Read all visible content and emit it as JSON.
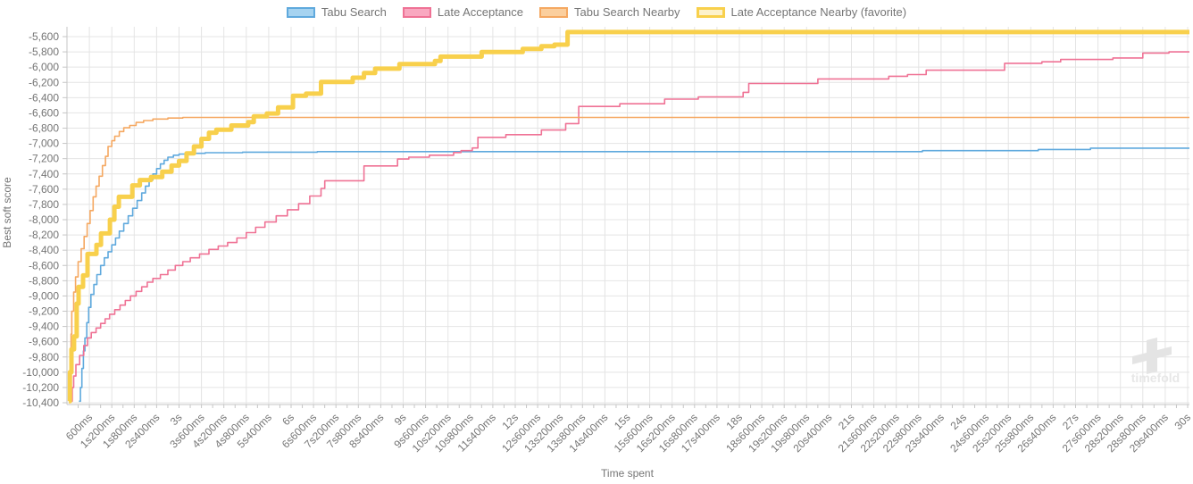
{
  "page": {
    "background": "#ffffff",
    "grid_color": "#e4e4e4",
    "axis_color": "#c6c6c6",
    "tick_label_color": "#757575"
  },
  "watermark": {
    "text": "timefold",
    "text_color": "#e7e7e7",
    "logo_color": "#e4e4e4"
  },
  "chart_data": {
    "type": "line",
    "step": true,
    "title": "",
    "xlabel": "Time spent",
    "ylabel": "Best soft score",
    "xlim_seconds": [
      0,
      30
    ],
    "ylim": [
      -10400,
      -5600
    ],
    "grid": true,
    "legend_position": "top-center",
    "x_tick_interval_seconds": 0.6,
    "x_tick_labels": [
      "600ms",
      "1s200ms",
      "1s800ms",
      "2s400ms",
      "3s",
      "3s600ms",
      "4s200ms",
      "4s800ms",
      "5s400ms",
      "6s",
      "6s600ms",
      "7s200ms",
      "7s800ms",
      "8s400ms",
      "9s",
      "9s600ms",
      "10s200ms",
      "10s800ms",
      "11s400ms",
      "12s",
      "12s600ms",
      "13s200ms",
      "13s800ms",
      "14s400ms",
      "15s",
      "15s600ms",
      "16s200ms",
      "16s800ms",
      "17s400ms",
      "18s",
      "18s600ms",
      "19s200ms",
      "19s800ms",
      "20s400ms",
      "21s",
      "21s600ms",
      "22s200ms",
      "22s800ms",
      "23s400ms",
      "24s",
      "24s600ms",
      "25s200ms",
      "25s800ms",
      "26s400ms",
      "27s",
      "27s600ms",
      "28s200ms",
      "28s800ms",
      "29s400ms",
      "30s"
    ],
    "y_tick_labels": [
      "-5,600",
      "-5,800",
      "-6,000",
      "-6,200",
      "-6,400",
      "-6,600",
      "-6,800",
      "-7,000",
      "-7,200",
      "-7,400",
      "-7,600",
      "-7,800",
      "-8,000",
      "-8,200",
      "-8,400",
      "-8,600",
      "-8,800",
      "-9,000",
      "-9,200",
      "-9,400",
      "-9,600",
      "-9,800",
      "-10,000",
      "-10,200",
      "-10,400"
    ],
    "series": [
      {
        "name": "Tabu Search",
        "color": "#5fa9dd",
        "legend_fill": "#a6d3f0",
        "line_width": 1.6,
        "final_score": -7062,
        "points": [
          [
            0.32,
            -10380
          ],
          [
            0.36,
            -10200
          ],
          [
            0.4,
            -9950
          ],
          [
            0.44,
            -9720
          ],
          [
            0.48,
            -9550
          ],
          [
            0.53,
            -9350
          ],
          [
            0.58,
            -9150
          ],
          [
            0.64,
            -8980
          ],
          [
            0.72,
            -8850
          ],
          [
            0.8,
            -8720
          ],
          [
            0.9,
            -8600
          ],
          [
            1.0,
            -8500
          ],
          [
            1.1,
            -8420
          ],
          [
            1.2,
            -8330
          ],
          [
            1.3,
            -8240
          ],
          [
            1.4,
            -8150
          ],
          [
            1.52,
            -8050
          ],
          [
            1.64,
            -7950
          ],
          [
            1.76,
            -7850
          ],
          [
            1.88,
            -7750
          ],
          [
            2.0,
            -7650
          ],
          [
            2.1,
            -7560
          ],
          [
            2.2,
            -7480
          ],
          [
            2.3,
            -7400
          ],
          [
            2.4,
            -7330
          ],
          [
            2.5,
            -7270
          ],
          [
            2.6,
            -7220
          ],
          [
            2.7,
            -7180
          ],
          [
            2.85,
            -7155
          ],
          [
            3.0,
            -7140
          ],
          [
            3.3,
            -7130
          ],
          [
            3.7,
            -7122
          ],
          [
            4.7,
            -7115
          ],
          [
            6.7,
            -7108
          ],
          [
            22.9,
            -7095
          ],
          [
            26.0,
            -7080
          ],
          [
            27.4,
            -7062
          ]
        ]
      },
      {
        "name": "Late Acceptance",
        "color": "#ef7295",
        "legend_fill": "#f9a8c0",
        "line_width": 1.6,
        "final_score": -5800,
        "points": [
          [
            0.1,
            -10380
          ],
          [
            0.14,
            -10200
          ],
          [
            0.18,
            -10050
          ],
          [
            0.24,
            -9900
          ],
          [
            0.34,
            -9780
          ],
          [
            0.45,
            -9650
          ],
          [
            0.55,
            -9550
          ],
          [
            0.65,
            -9480
          ],
          [
            0.78,
            -9420
          ],
          [
            0.9,
            -9360
          ],
          [
            1.02,
            -9300
          ],
          [
            1.14,
            -9240
          ],
          [
            1.28,
            -9180
          ],
          [
            1.42,
            -9120
          ],
          [
            1.56,
            -9060
          ],
          [
            1.7,
            -9000
          ],
          [
            1.85,
            -8940
          ],
          [
            2.0,
            -8880
          ],
          [
            2.15,
            -8820
          ],
          [
            2.3,
            -8770
          ],
          [
            2.5,
            -8720
          ],
          [
            2.7,
            -8660
          ],
          [
            2.9,
            -8600
          ],
          [
            3.1,
            -8550
          ],
          [
            3.3,
            -8500
          ],
          [
            3.55,
            -8450
          ],
          [
            3.8,
            -8390
          ],
          [
            4.05,
            -8345
          ],
          [
            4.3,
            -8300
          ],
          [
            4.55,
            -8240
          ],
          [
            4.8,
            -8170
          ],
          [
            5.05,
            -8100
          ],
          [
            5.3,
            -8030
          ],
          [
            5.6,
            -7950
          ],
          [
            5.9,
            -7870
          ],
          [
            6.2,
            -7790
          ],
          [
            6.5,
            -7690
          ],
          [
            6.8,
            -7590
          ],
          [
            6.9,
            -7490
          ],
          [
            7.95,
            -7295
          ],
          [
            8.85,
            -7205
          ],
          [
            9.15,
            -7180
          ],
          [
            9.7,
            -7155
          ],
          [
            10.35,
            -7120
          ],
          [
            10.55,
            -7095
          ],
          [
            10.85,
            -7060
          ],
          [
            11.0,
            -6920
          ],
          [
            11.75,
            -6885
          ],
          [
            12.7,
            -6825
          ],
          [
            13.35,
            -6740
          ],
          [
            13.7,
            -6515
          ],
          [
            14.8,
            -6480
          ],
          [
            16.0,
            -6420
          ],
          [
            16.9,
            -6390
          ],
          [
            18.1,
            -6330
          ],
          [
            18.25,
            -6215
          ],
          [
            20.1,
            -6155
          ],
          [
            22.0,
            -6120
          ],
          [
            22.5,
            -6098
          ],
          [
            23.0,
            -6040
          ],
          [
            25.1,
            -5950
          ],
          [
            26.1,
            -5930
          ],
          [
            26.6,
            -5900
          ],
          [
            28.0,
            -5880
          ],
          [
            28.8,
            -5815
          ],
          [
            29.5,
            -5800
          ]
        ]
      },
      {
        "name": "Tabu Search Nearby",
        "color": "#f5a861",
        "legend_fill": "#fbcf9e",
        "line_width": 1.6,
        "final_score": -6660,
        "points": [
          [
            0.07,
            -10380
          ],
          [
            0.09,
            -9950
          ],
          [
            0.11,
            -9500
          ],
          [
            0.13,
            -9200
          ],
          [
            0.18,
            -8950
          ],
          [
            0.23,
            -8750
          ],
          [
            0.3,
            -8550
          ],
          [
            0.38,
            -8380
          ],
          [
            0.46,
            -8220
          ],
          [
            0.54,
            -8050
          ],
          [
            0.62,
            -7880
          ],
          [
            0.7,
            -7700
          ],
          [
            0.78,
            -7560
          ],
          [
            0.86,
            -7430
          ],
          [
            0.95,
            -7290
          ],
          [
            1.03,
            -7170
          ],
          [
            1.1,
            -7040
          ],
          [
            1.2,
            -6965
          ],
          [
            1.28,
            -6905
          ],
          [
            1.4,
            -6845
          ],
          [
            1.52,
            -6795
          ],
          [
            1.68,
            -6765
          ],
          [
            1.85,
            -6725
          ],
          [
            2.05,
            -6700
          ],
          [
            2.3,
            -6680
          ],
          [
            2.7,
            -6668
          ],
          [
            3.1,
            -6660
          ]
        ]
      },
      {
        "name": "Late Acceptance Nearby (favorite)",
        "color": "#f8d04c",
        "legend_fill": "#fdf2cc",
        "line_width": 5,
        "final_score": -5540,
        "points": [
          [
            0.05,
            -10380
          ],
          [
            0.08,
            -10000
          ],
          [
            0.12,
            -9700
          ],
          [
            0.19,
            -9530
          ],
          [
            0.26,
            -9100
          ],
          [
            0.31,
            -8880
          ],
          [
            0.43,
            -8730
          ],
          [
            0.55,
            -8450
          ],
          [
            0.79,
            -8330
          ],
          [
            0.91,
            -8180
          ],
          [
            1.15,
            -8000
          ],
          [
            1.27,
            -7830
          ],
          [
            1.39,
            -7700
          ],
          [
            1.75,
            -7550
          ],
          [
            1.95,
            -7480
          ],
          [
            2.25,
            -7440
          ],
          [
            2.55,
            -7370
          ],
          [
            2.8,
            -7290
          ],
          [
            3.0,
            -7230
          ],
          [
            3.2,
            -7130
          ],
          [
            3.4,
            -7040
          ],
          [
            3.6,
            -6940
          ],
          [
            3.8,
            -6860
          ],
          [
            4.0,
            -6820
          ],
          [
            4.4,
            -6765
          ],
          [
            4.85,
            -6720
          ],
          [
            5.0,
            -6645
          ],
          [
            5.35,
            -6608
          ],
          [
            5.65,
            -6528
          ],
          [
            6.05,
            -6375
          ],
          [
            6.4,
            -6348
          ],
          [
            6.8,
            -6195
          ],
          [
            7.65,
            -6138
          ],
          [
            7.95,
            -6078
          ],
          [
            8.25,
            -6020
          ],
          [
            8.9,
            -5960
          ],
          [
            9.85,
            -5920
          ],
          [
            10.0,
            -5862
          ],
          [
            11.1,
            -5802
          ],
          [
            12.2,
            -5762
          ],
          [
            12.7,
            -5725
          ],
          [
            13.05,
            -5705
          ],
          [
            13.4,
            -5540
          ]
        ]
      }
    ]
  }
}
